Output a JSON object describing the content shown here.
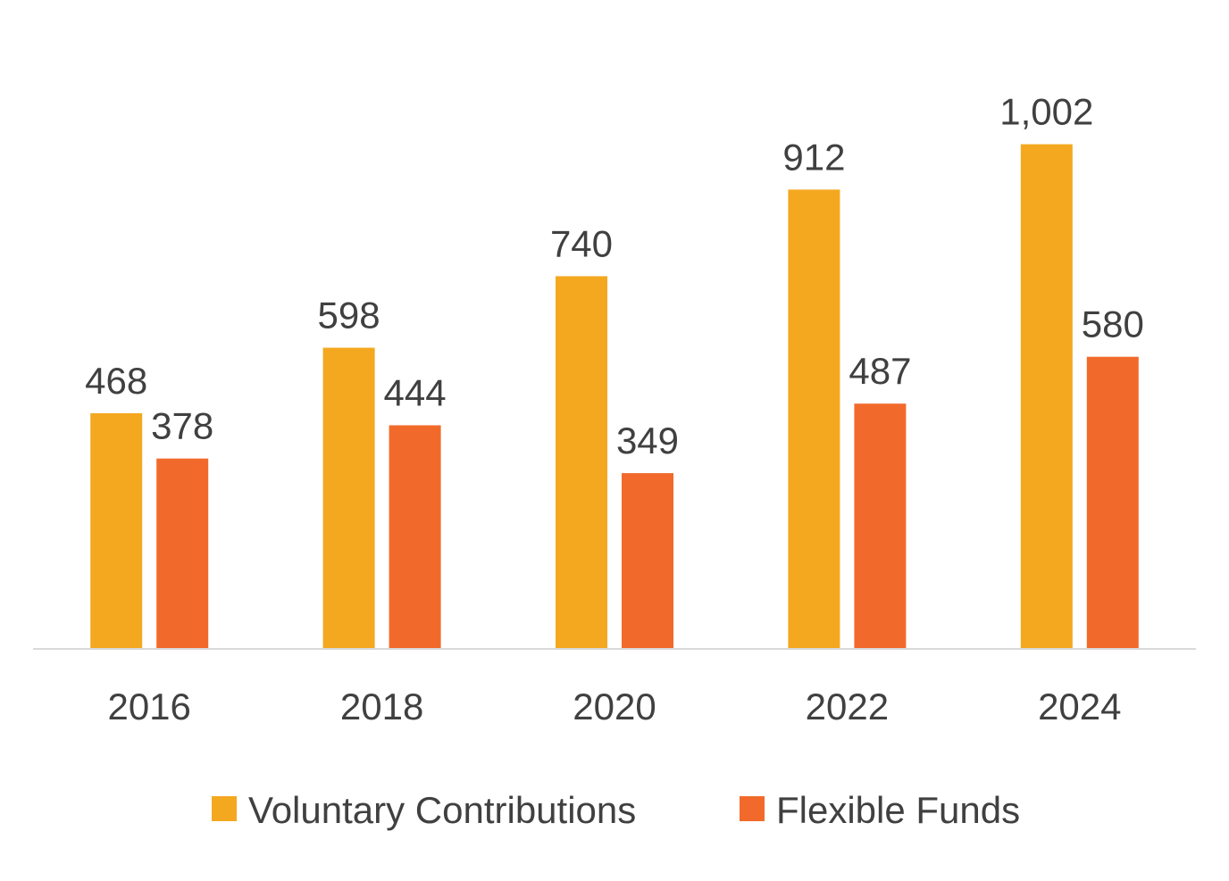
{
  "chart_data": {
    "type": "bar",
    "title": "",
    "xlabel": "",
    "ylabel": "",
    "categories": [
      "2016",
      "2018",
      "2020",
      "2022",
      "2024"
    ],
    "series": [
      {
        "name": "Voluntary Contributions",
        "color": "#F4A820",
        "values": [
          468,
          598,
          740,
          912,
          1002
        ],
        "labels": [
          "468",
          "598",
          "740",
          "912",
          "1,002"
        ]
      },
      {
        "name": "Flexible Funds",
        "color": "#F26A2B",
        "values": [
          378,
          444,
          349,
          487,
          580
        ],
        "labels": [
          "378",
          "444",
          "349",
          "487",
          "580"
        ]
      }
    ],
    "ylim": [
      0,
      1120
    ],
    "grid": false,
    "legend_position": "bottom",
    "axis_color": "#D9D9D9",
    "text_color": "#404040"
  }
}
